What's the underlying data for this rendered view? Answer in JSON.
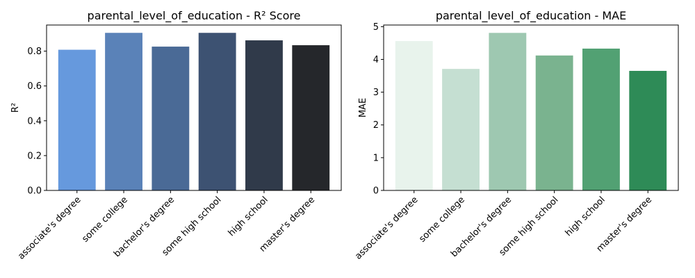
{
  "chart_data": [
    {
      "type": "bar",
      "title": "parental_level_of_education - R² Score",
      "xlabel": "",
      "ylabel": "R²",
      "categories": [
        "associate's degree",
        "some college",
        "bachelor's degree",
        "some high school",
        "high school",
        "master's degree"
      ],
      "values": [
        0.808,
        0.905,
        0.826,
        0.905,
        0.862,
        0.834
      ],
      "colors": [
        "#6699dd",
        "#5a82b8",
        "#4a6a96",
        "#3d5272",
        "#303a4a",
        "#25272b"
      ],
      "ylim": [
        0,
        0.95
      ],
      "yticks": [
        0.0,
        0.2,
        0.4,
        0.6,
        0.8
      ],
      "ytick_labels": [
        "0.0",
        "0.2",
        "0.4",
        "0.6",
        "0.8"
      ],
      "grid": false
    },
    {
      "type": "bar",
      "title": "parental_level_of_education - MAE",
      "xlabel": "",
      "ylabel": "MAE",
      "categories": [
        "associate's degree",
        "some college",
        "bachelor's degree",
        "some high school",
        "high school",
        "master's degree"
      ],
      "values": [
        4.56,
        3.71,
        4.81,
        4.12,
        4.33,
        3.65
      ],
      "colors": [
        "#e8f3ec",
        "#c5dfd2",
        "#9ec8b1",
        "#7ab38f",
        "#52a173",
        "#2e8b57"
      ],
      "ylim": [
        0,
        5.05
      ],
      "yticks": [
        0,
        1,
        2,
        3,
        4,
        5
      ],
      "ytick_labels": [
        "0",
        "1",
        "2",
        "3",
        "4",
        "5"
      ],
      "grid": false
    }
  ]
}
